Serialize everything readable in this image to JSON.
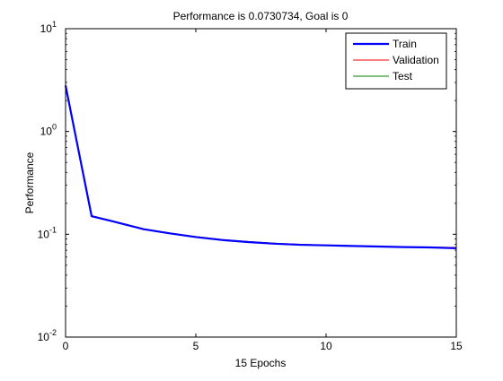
{
  "chart_data": {
    "type": "line",
    "title": "Performance is 0.0730734, Goal is 0",
    "xlabel": "15 Epochs",
    "ylabel": "Performance",
    "xlim": [
      0,
      15
    ],
    "ylim": [
      0.01,
      10
    ],
    "yscale": "log",
    "grid": false,
    "legend_position": "top-right",
    "x_ticks": [
      {
        "value": 0,
        "label": "0"
      },
      {
        "value": 5,
        "label": "5"
      },
      {
        "value": 10,
        "label": "10"
      },
      {
        "value": 15,
        "label": "15"
      }
    ],
    "y_ticks": [
      {
        "value": 0.01,
        "base": "10",
        "exp": "-2"
      },
      {
        "value": 0.1,
        "base": "10",
        "exp": "-1"
      },
      {
        "value": 1,
        "base": "10",
        "exp": "0"
      },
      {
        "value": 10,
        "base": "10",
        "exp": "1"
      }
    ],
    "x": [
      0,
      1,
      2,
      3,
      4,
      5,
      6,
      7,
      8,
      9,
      10,
      11,
      12,
      13,
      14,
      15
    ],
    "series": [
      {
        "name": "Train",
        "color": "#0000ff",
        "width": "thick",
        "values": [
          2.8,
          0.15,
          0.13,
          0.112,
          0.102,
          0.094,
          0.088,
          0.084,
          0.081,
          0.079,
          0.078,
          0.077,
          0.076,
          0.075,
          0.0745,
          0.0731
        ]
      },
      {
        "name": "Validation",
        "color": "#ff0000",
        "width": "thin",
        "values": [
          2.8,
          0.152,
          0.131,
          0.113,
          0.103,
          0.095,
          0.089,
          0.085,
          0.082,
          0.08,
          0.0785,
          0.0775,
          0.0765,
          0.0755,
          0.075,
          0.0745
        ]
      },
      {
        "name": "Test",
        "color": "#008000",
        "width": "thin",
        "values": [
          2.8,
          0.151,
          0.13,
          0.1125,
          0.1025,
          0.0945,
          0.0885,
          0.0845,
          0.0815,
          0.0795,
          0.0782,
          0.0772,
          0.0762,
          0.0752,
          0.0747,
          0.0738
        ]
      }
    ]
  }
}
